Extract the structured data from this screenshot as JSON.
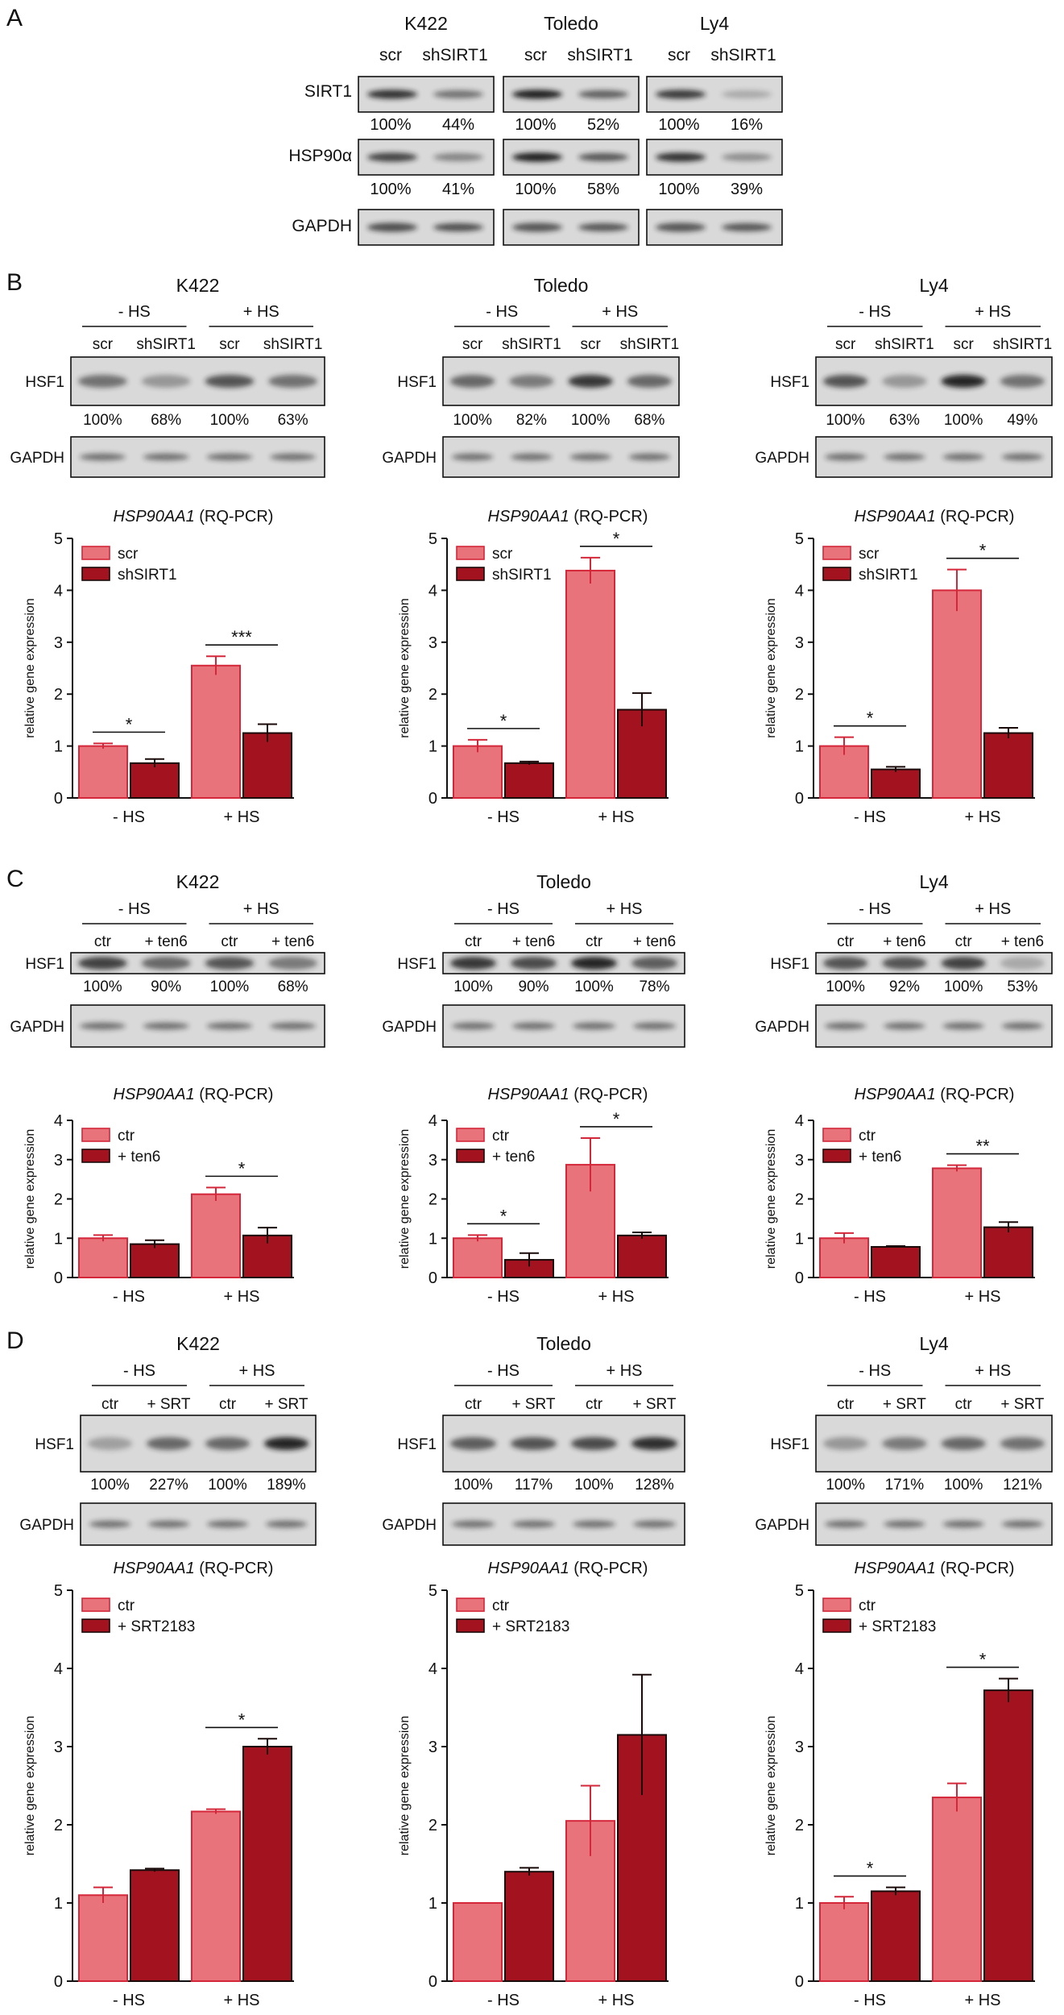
{
  "panelA": {
    "letter": "A",
    "rows": [
      "SIRT1",
      "HSP90α",
      "GAPDH"
    ],
    "blots": [
      {
        "cell": "K422",
        "lanes": [
          "scr",
          "shSIRT1"
        ],
        "sirt1": [
          "100%",
          "44%"
        ],
        "hsp90": [
          "100%",
          "41%"
        ]
      },
      {
        "cell": "Toledo",
        "lanes": [
          "scr",
          "shSIRT1"
        ],
        "sirt1": [
          "100%",
          "52%"
        ],
        "hsp90": [
          "100%",
          "58%"
        ]
      },
      {
        "cell": "Ly4",
        "lanes": [
          "scr",
          "shSIRT1"
        ],
        "sirt1": [
          "100%",
          "16%"
        ],
        "hsp90": [
          "100%",
          "39%"
        ]
      }
    ]
  },
  "panelB": {
    "letter": "B",
    "cells": [
      {
        "cell": "K422",
        "groups": [
          "- HS",
          "+ HS"
        ],
        "lanes": [
          "scr",
          "shSIRT1",
          "scr",
          "shSIRT1"
        ],
        "row1": "HSF1",
        "row2": "GAPDH",
        "quant": [
          "100%",
          "68%",
          "100%",
          "63%"
        ]
      },
      {
        "cell": "Toledo",
        "groups": [
          "- HS",
          "+ HS"
        ],
        "lanes": [
          "scr",
          "shSIRT1",
          "scr",
          "shSIRT1"
        ],
        "row1": "HSF1",
        "row2": "GAPDH",
        "quant": [
          "100%",
          "82%",
          "100%",
          "68%"
        ]
      },
      {
        "cell": "Ly4",
        "groups": [
          "- HS",
          "+ HS"
        ],
        "lanes": [
          "scr",
          "shSIRT1",
          "scr",
          "shSIRT1"
        ],
        "row1": "HSF1",
        "row2": "GAPDH",
        "quant": [
          "100%",
          "63%",
          "100%",
          "49%"
        ]
      }
    ]
  },
  "panelC": {
    "letter": "C",
    "cells": [
      {
        "cell": "K422",
        "groups": [
          "- HS",
          "+ HS"
        ],
        "lanes": [
          "ctr",
          "+ ten6",
          "ctr",
          "+ ten6"
        ],
        "row1": "HSF1",
        "row2": "GAPDH",
        "quant": [
          "100%",
          "90%",
          "100%",
          "68%"
        ]
      },
      {
        "cell": "Toledo",
        "groups": [
          "- HS",
          "+ HS"
        ],
        "lanes": [
          "ctr",
          "+ ten6",
          "ctr",
          "+ ten6"
        ],
        "row1": "HSF1",
        "row2": "GAPDH",
        "quant": [
          "100%",
          "90%",
          "100%",
          "78%"
        ]
      },
      {
        "cell": "Ly4",
        "groups": [
          "- HS",
          "+ HS"
        ],
        "lanes": [
          "ctr",
          "+ ten6",
          "ctr",
          "+ ten6"
        ],
        "row1": "HSF1",
        "row2": "GAPDH",
        "quant": [
          "100%",
          "92%",
          "100%",
          "53%"
        ]
      }
    ]
  },
  "panelD": {
    "letter": "D",
    "cells": [
      {
        "cell": "K422",
        "groups": [
          "- HS",
          "+ HS"
        ],
        "lanes": [
          "ctr",
          "+ SRT",
          "ctr",
          "+ SRT"
        ],
        "row1": "HSF1",
        "row2": "GAPDH",
        "quant": [
          "100%",
          "227%",
          "100%",
          "189%"
        ]
      },
      {
        "cell": "Toledo",
        "groups": [
          "- HS",
          "+ HS"
        ],
        "lanes": [
          "ctr",
          "+ SRT",
          "ctr",
          "+ SRT"
        ],
        "row1": "HSF1",
        "row2": "GAPDH",
        "quant": [
          "100%",
          "117%",
          "100%",
          "128%"
        ]
      },
      {
        "cell": "Ly4",
        "groups": [
          "- HS",
          "+ HS"
        ],
        "lanes": [
          "ctr",
          "+ SRT",
          "ctr",
          "+ SRT"
        ],
        "row1": "HSF1",
        "row2": "GAPDH",
        "quant": [
          "100%",
          "171%",
          "100%",
          "121%"
        ]
      }
    ]
  },
  "colors": {
    "light": "#e8737b",
    "lightEdge": "#d4273a",
    "dark": "#a3121f",
    "darkEdge": "#1a0a0a",
    "band": "#1e1e1e",
    "membrane": "#d9d9d9"
  },
  "chart_data": [
    {
      "panel": "B",
      "cell": "K422",
      "type": "bar",
      "title_gene": "HSP90AA1",
      "title_rest": " (RQ-PCR)",
      "ylabel": "relative gene expression",
      "ylim": [
        0,
        5
      ],
      "yticks": [
        0,
        1,
        2,
        3,
        4,
        5
      ],
      "categories": [
        "- HS",
        "+ HS"
      ],
      "series": [
        {
          "name": "scr",
          "values": [
            1.0,
            2.55
          ],
          "err": [
            0.05,
            0.18
          ]
        },
        {
          "name": "shSIRT1",
          "values": [
            0.67,
            1.25
          ],
          "err": [
            0.08,
            0.17
          ]
        }
      ],
      "sig": [
        {
          "cat": 0,
          "label": "*"
        },
        {
          "cat": 1,
          "label": "***"
        }
      ]
    },
    {
      "panel": "B",
      "cell": "Toledo",
      "type": "bar",
      "title_gene": "HSP90AA1",
      "title_rest": " (RQ-PCR)",
      "ylabel": "relative gene expression",
      "ylim": [
        0,
        5
      ],
      "yticks": [
        0,
        1,
        2,
        3,
        4,
        5
      ],
      "categories": [
        "- HS",
        "+ HS"
      ],
      "series": [
        {
          "name": "scr",
          "values": [
            1.0,
            4.38
          ],
          "err": [
            0.12,
            0.25
          ]
        },
        {
          "name": "shSIRT1",
          "values": [
            0.67,
            1.7
          ],
          "err": [
            0.03,
            0.32
          ]
        }
      ],
      "sig": [
        {
          "cat": 0,
          "label": "*"
        },
        {
          "cat": 1,
          "label": "*"
        }
      ]
    },
    {
      "panel": "B",
      "cell": "Ly4",
      "type": "bar",
      "title_gene": "HSP90AA1",
      "title_rest": " (RQ-PCR)",
      "ylabel": "relative gene expression",
      "ylim": [
        0,
        5
      ],
      "yticks": [
        0,
        1,
        2,
        3,
        4,
        5
      ],
      "categories": [
        "- HS",
        "+ HS"
      ],
      "series": [
        {
          "name": "scr",
          "values": [
            1.0,
            4.0
          ],
          "err": [
            0.17,
            0.4
          ]
        },
        {
          "name": "shSIRT1",
          "values": [
            0.55,
            1.25
          ],
          "err": [
            0.05,
            0.1
          ]
        }
      ],
      "sig": [
        {
          "cat": 0,
          "label": "*"
        },
        {
          "cat": 1,
          "label": "*"
        }
      ]
    },
    {
      "panel": "C",
      "cell": "K422",
      "type": "bar",
      "title_gene": "HSP90AA1",
      "title_rest": " (RQ-PCR)",
      "ylabel": "relative gene expression",
      "ylim": [
        0,
        4
      ],
      "yticks": [
        0,
        1,
        2,
        3,
        4
      ],
      "categories": [
        "- HS",
        "+ HS"
      ],
      "series": [
        {
          "name": "ctr",
          "values": [
            1.0,
            2.12
          ],
          "err": [
            0.08,
            0.17
          ]
        },
        {
          "name": "+ ten6",
          "values": [
            0.85,
            1.07
          ],
          "err": [
            0.1,
            0.2
          ]
        }
      ],
      "sig": [
        {
          "cat": 1,
          "label": "*"
        }
      ]
    },
    {
      "panel": "C",
      "cell": "Toledo",
      "type": "bar",
      "title_gene": "HSP90AA1",
      "title_rest": " (RQ-PCR)",
      "ylabel": "relative gene expression",
      "ylim": [
        0,
        4
      ],
      "yticks": [
        0,
        1,
        2,
        3,
        4
      ],
      "categories": [
        "- HS",
        "+ HS"
      ],
      "series": [
        {
          "name": "ctr",
          "values": [
            1.0,
            2.87
          ],
          "err": [
            0.08,
            0.68
          ]
        },
        {
          "name": "+ ten6",
          "values": [
            0.45,
            1.07
          ],
          "err": [
            0.17,
            0.08
          ]
        }
      ],
      "sig": [
        {
          "cat": 0,
          "label": "*"
        },
        {
          "cat": 1,
          "label": "*"
        }
      ]
    },
    {
      "panel": "C",
      "cell": "Ly4",
      "type": "bar",
      "title_gene": "HSP90AA1",
      "title_rest": " (RQ-PCR)",
      "ylabel": "relative gene expression",
      "ylim": [
        0,
        4
      ],
      "yticks": [
        0,
        1,
        2,
        3,
        4
      ],
      "categories": [
        "- HS",
        "+ HS"
      ],
      "series": [
        {
          "name": "ctr",
          "values": [
            1.0,
            2.78
          ],
          "err": [
            0.13,
            0.08
          ]
        },
        {
          "name": "+ ten6",
          "values": [
            0.78,
            1.28
          ],
          "err": [
            0.02,
            0.13
          ]
        }
      ],
      "sig": [
        {
          "cat": 1,
          "label": "**"
        }
      ]
    },
    {
      "panel": "D",
      "cell": "K422",
      "type": "bar",
      "title_gene": "HSP90AA1",
      "title_rest": " (RQ-PCR)",
      "ylabel": "relative gene expression",
      "ylim": [
        0,
        5
      ],
      "yticks": [
        0,
        1,
        2,
        3,
        4,
        5
      ],
      "categories": [
        "- HS",
        "+ HS"
      ],
      "series": [
        {
          "name": "ctr",
          "values": [
            1.1,
            2.17
          ],
          "err": [
            0.1,
            0.03
          ]
        },
        {
          "name": "+ SRT2183",
          "values": [
            1.42,
            3.0
          ],
          "err": [
            0.02,
            0.1
          ]
        }
      ],
      "sig": [
        {
          "cat": 1,
          "label": "*"
        }
      ]
    },
    {
      "panel": "D",
      "cell": "Toledo",
      "type": "bar",
      "title_gene": "HSP90AA1",
      "title_rest": " (RQ-PCR)",
      "ylabel": "relative gene expression",
      "ylim": [
        0,
        5
      ],
      "yticks": [
        0,
        1,
        2,
        3,
        4,
        5
      ],
      "categories": [
        "- HS",
        "+ HS"
      ],
      "series": [
        {
          "name": "ctr",
          "values": [
            1.0,
            2.05
          ],
          "err": [
            0.0,
            0.45
          ]
        },
        {
          "name": "+ SRT2183",
          "values": [
            1.4,
            3.15
          ],
          "err": [
            0.05,
            0.77
          ]
        }
      ],
      "sig": []
    },
    {
      "panel": "D",
      "cell": "Ly4",
      "type": "bar",
      "title_gene": "HSP90AA1",
      "title_rest": " (RQ-PCR)",
      "ylabel": "relative gene expression",
      "ylim": [
        0,
        5
      ],
      "yticks": [
        0,
        1,
        2,
        3,
        4,
        5
      ],
      "categories": [
        "- HS",
        "+ HS"
      ],
      "series": [
        {
          "name": "ctr",
          "values": [
            1.0,
            2.35
          ],
          "err": [
            0.08,
            0.18
          ]
        },
        {
          "name": "+ SRT2183",
          "values": [
            1.15,
            3.72
          ],
          "err": [
            0.05,
            0.15
          ]
        }
      ],
      "sig": [
        {
          "cat": 0,
          "label": "*"
        },
        {
          "cat": 1,
          "label": "*"
        }
      ]
    }
  ]
}
